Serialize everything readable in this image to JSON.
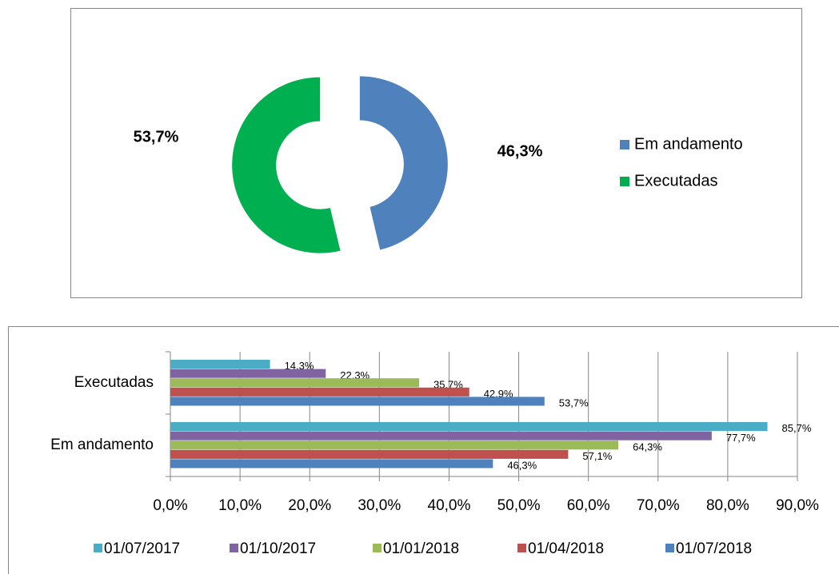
{
  "chart_data": [
    {
      "type": "pie",
      "donut": true,
      "categories": [
        "Em andamento",
        "Executadas"
      ],
      "values": [
        46.3,
        53.7
      ],
      "value_labels": [
        "46,3%",
        "53,7%"
      ],
      "colors": [
        "#4f81bd",
        "#00b050"
      ],
      "legend": "right"
    },
    {
      "type": "bar",
      "orientation": "horizontal",
      "categories": [
        "Em andamento",
        "Executadas"
      ],
      "series": [
        {
          "name": "01/07/2017",
          "color": "#4bacc6",
          "values": [
            85.7,
            14.3
          ],
          "value_labels": [
            "85,7%",
            "14,3%"
          ]
        },
        {
          "name": "01/10/2017",
          "color": "#8064a2",
          "values": [
            77.7,
            22.3
          ],
          "value_labels": [
            "77,7%",
            "22,3%"
          ]
        },
        {
          "name": "01/01/2018",
          "color": "#9bbb59",
          "values": [
            64.3,
            35.7
          ],
          "value_labels": [
            "64,3%",
            "35,7%"
          ]
        },
        {
          "name": "01/04/2018",
          "color": "#c0504d",
          "values": [
            57.1,
            42.9
          ],
          "value_labels": [
            "57,1%",
            "42,9%"
          ]
        },
        {
          "name": "01/07/2018",
          "color": "#4f81bd",
          "values": [
            46.3,
            53.7
          ],
          "value_labels": [
            "46,3%",
            "53,7%"
          ]
        }
      ],
      "xlim": [
        0,
        90
      ],
      "xticks": [
        {
          "value": 0,
          "label": "0,0%"
        },
        {
          "value": 10,
          "label": "10,0%"
        },
        {
          "value": 20,
          "label": "20,0%"
        },
        {
          "value": 30,
          "label": "30,0%"
        },
        {
          "value": 40,
          "label": "40,0%"
        },
        {
          "value": 50,
          "label": "50,0%"
        },
        {
          "value": 60,
          "label": "60,0%"
        },
        {
          "value": 70,
          "label": "70,0%"
        },
        {
          "value": 80,
          "label": "80,0%"
        },
        {
          "value": 90,
          "label": "90,0%"
        }
      ],
      "grid": true,
      "legend": "bottom"
    }
  ]
}
